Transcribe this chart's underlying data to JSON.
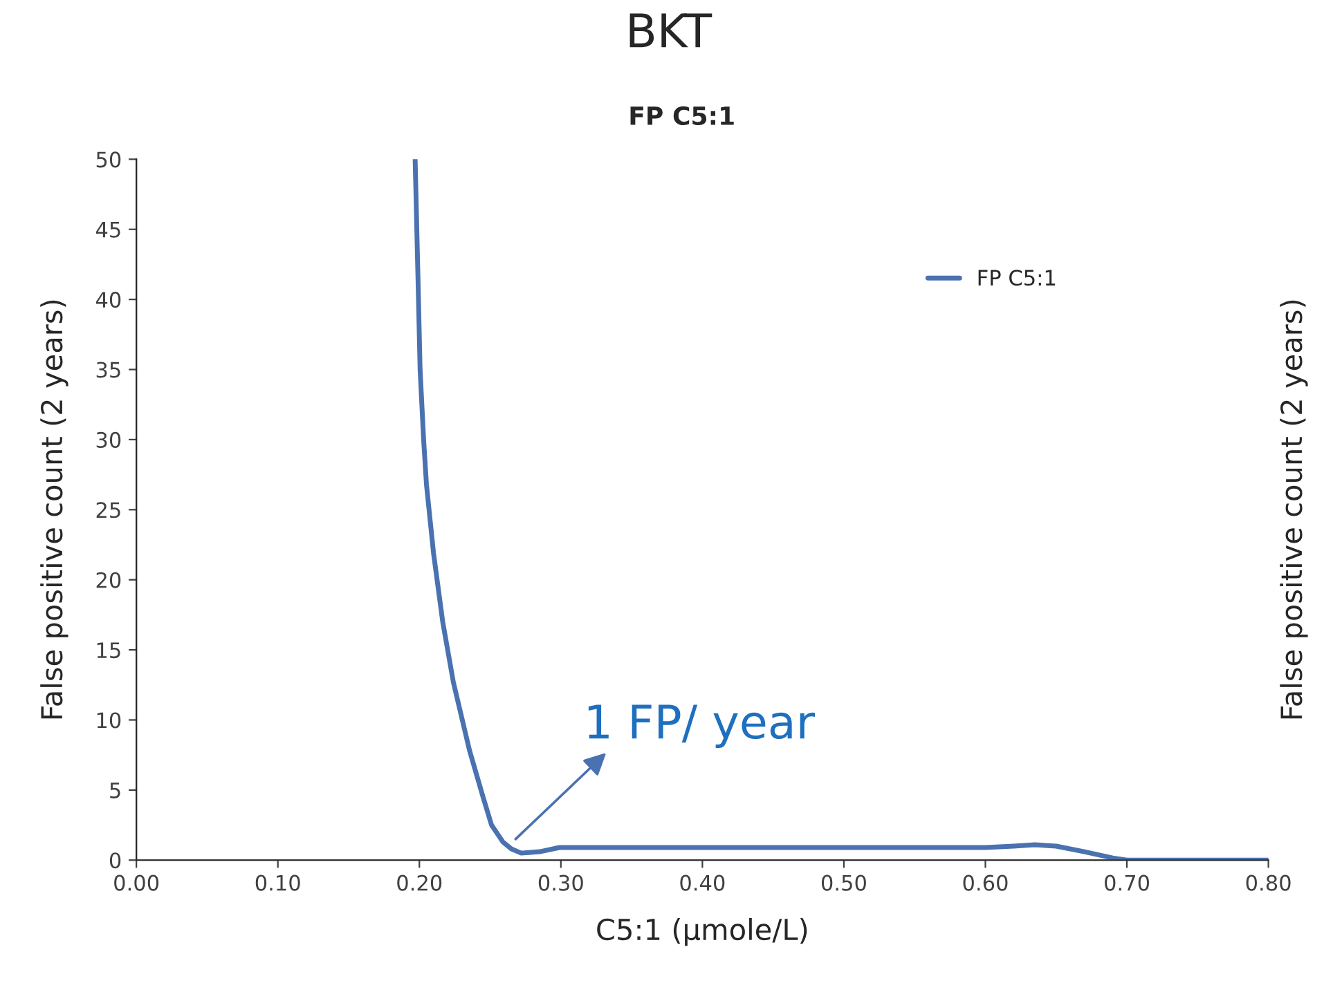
{
  "chart_data": {
    "type": "line",
    "title": "BKT",
    "subtitle": "FP C5:1",
    "xlabel": "C5:1 (µmole/L)",
    "ylabel": "False positive count (2 years)",
    "y2label": "False positive count (2 years)",
    "series": [
      {
        "name": "FP C5:1",
        "color": "#4a72b0",
        "x": [
          0.197,
          0.199,
          0.2005,
          0.203,
          0.205,
          0.21,
          0.2165,
          0.224,
          0.2355,
          0.245,
          0.251,
          0.259,
          0.265,
          0.272,
          0.285,
          0.299,
          0.35,
          0.4,
          0.5,
          0.6,
          0.62,
          0.635,
          0.65,
          0.67,
          0.69,
          0.7,
          0.75,
          0.8
        ],
        "values": [
          50,
          41.6,
          35,
          30,
          26.8,
          21.9,
          17,
          12.7,
          7.8,
          4.5,
          2.5,
          1.3,
          0.8,
          0.5,
          0.6,
          0.9,
          0.9,
          0.9,
          0.9,
          0.9,
          1.0,
          1.1,
          1.0,
          0.6,
          0.15,
          0,
          0,
          0
        ]
      }
    ],
    "xlim": [
      0,
      0.8
    ],
    "xticks": [
      {
        "value": 0,
        "label": "0.00"
      },
      {
        "value": 0.1,
        "label": "0.10"
      },
      {
        "value": 0.2,
        "label": "0.20"
      },
      {
        "value": 0.3,
        "label": "0.30"
      },
      {
        "value": 0.4,
        "label": "0.40"
      },
      {
        "value": 0.5,
        "label": "0.50"
      },
      {
        "value": 0.6,
        "label": "0.60"
      },
      {
        "value": 0.7,
        "label": "0.70"
      },
      {
        "value": 0.8,
        "label": "0.80"
      }
    ],
    "ylim": [
      0,
      50
    ],
    "yticks": [
      0,
      5,
      10,
      15,
      20,
      25,
      30,
      35,
      40,
      45,
      50
    ],
    "annotations": [
      "1 FP/ year"
    ],
    "legend": "top right",
    "grid": false,
    "marker": "none",
    "line_style": "solid"
  }
}
